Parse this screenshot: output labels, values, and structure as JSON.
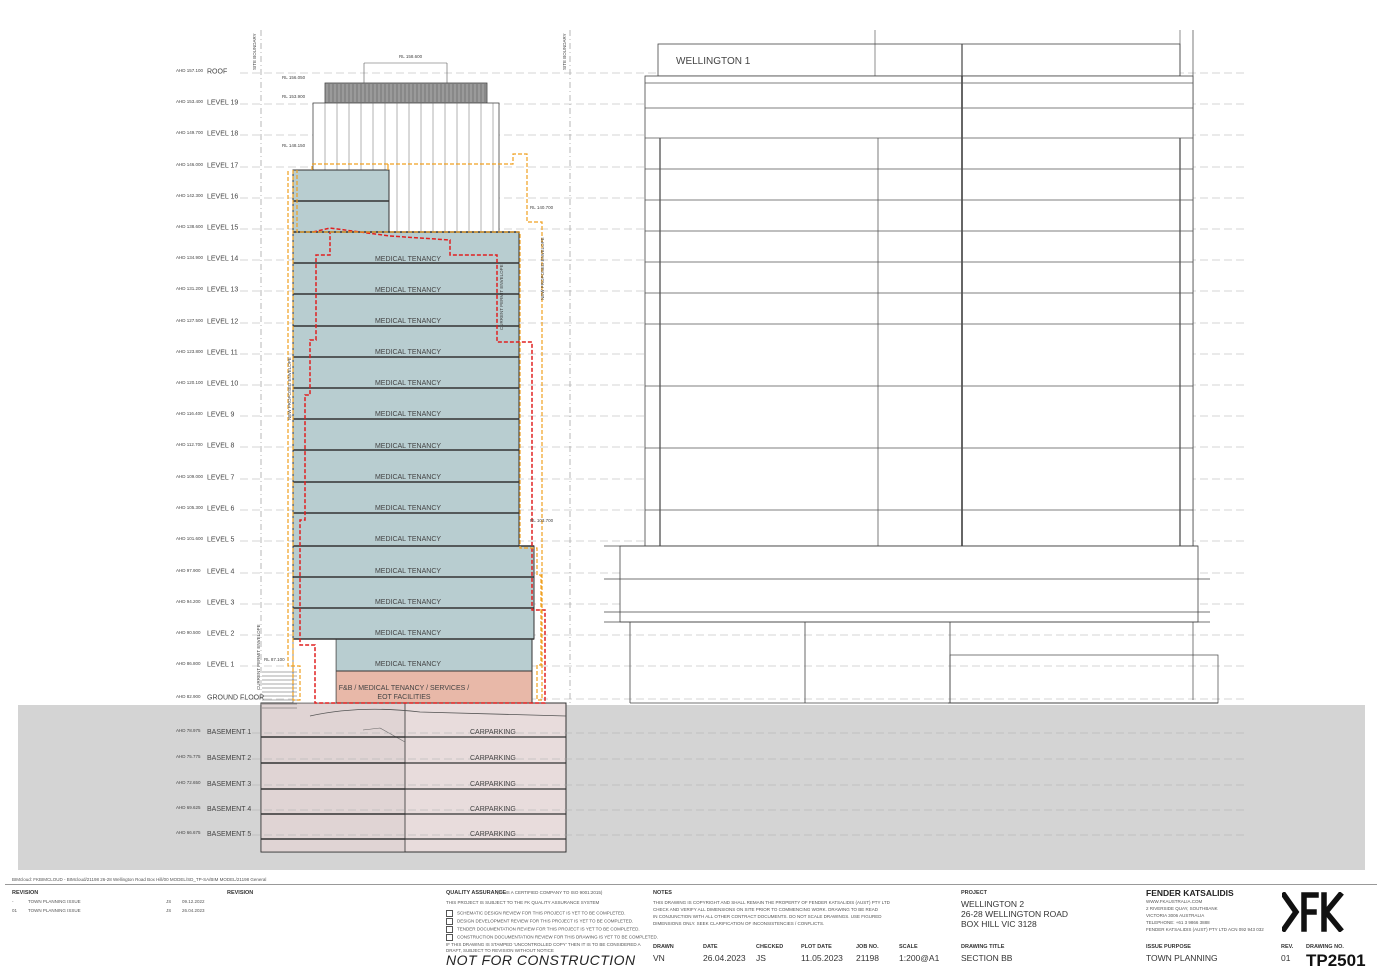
{
  "building": {
    "levels": [
      {
        "name": "ROOF",
        "ahd": "AHD 157.100"
      },
      {
        "name": "LEVEL 19",
        "ahd": "AHD 153.400"
      },
      {
        "name": "LEVEL 18",
        "ahd": "AHD 149.700"
      },
      {
        "name": "LEVEL 17",
        "ahd": "AHD 146.000"
      },
      {
        "name": "LEVEL 16",
        "ahd": "AHD 142.300"
      },
      {
        "name": "LEVEL 15",
        "ahd": "AHD 138.600"
      },
      {
        "name": "LEVEL 14",
        "ahd": "AHD 134.900"
      },
      {
        "name": "LEVEL 13",
        "ahd": "AHD 131.200"
      },
      {
        "name": "LEVEL 12",
        "ahd": "AHD 127.500"
      },
      {
        "name": "LEVEL 11",
        "ahd": "AHD 123.800"
      },
      {
        "name": "LEVEL 10",
        "ahd": "AHD 120.100"
      },
      {
        "name": "LEVEL 9",
        "ahd": "AHD 116.400"
      },
      {
        "name": "LEVEL 8",
        "ahd": "AHD 112.700"
      },
      {
        "name": "LEVEL 7",
        "ahd": "AHD 109.000"
      },
      {
        "name": "LEVEL 6",
        "ahd": "AHD 105.300"
      },
      {
        "name": "LEVEL 5",
        "ahd": "AHD 101.600"
      },
      {
        "name": "LEVEL 4",
        "ahd": "AHD 97.900"
      },
      {
        "name": "LEVEL 3",
        "ahd": "AHD 94.200"
      },
      {
        "name": "LEVEL 2",
        "ahd": "AHD 90.500"
      },
      {
        "name": "LEVEL 1",
        "ahd": "AHD 86.800"
      },
      {
        "name": "GROUND FLOOR",
        "ahd": "AHD 82.900"
      }
    ],
    "basements": [
      {
        "name": "BASEMENT 1",
        "ahd": "AHD 78.975",
        "use": "CARPARKING"
      },
      {
        "name": "BASEMENT 2",
        "ahd": "AHD 75.775",
        "use": "CARPARKING"
      },
      {
        "name": "BASEMENT 3",
        "ahd": "AHD 72.650",
        "use": "CARPARKING"
      },
      {
        "name": "BASEMENT 4",
        "ahd": "AHD 69.625",
        "use": "CARPARKING"
      },
      {
        "name": "BASEMENT 5",
        "ahd": "AHD 66.675",
        "use": "CARPARKING"
      }
    ],
    "tenancy_label": "MEDICAL TENANCY",
    "ground_label_1": "F&B / MEDICAL TENANCY / SERVICES /",
    "ground_label_2": "EOT FACILITIES",
    "site_boundary": "SITE BOUNDARY",
    "rl_top": "RL 158.600",
    "rl_roof": "RL 156.050",
    "rl_l19": "RL 153.900",
    "rl_l17": "RL 148.150",
    "rl_east": "RL 140.700",
    "rl_l5": "RL 103.700",
    "rl_l1": "RL 87.100",
    "envelope_label_1": "CURRENT PERMIT ENVELOPE",
    "envelope_label_2": "CURRENT PERMIT ENVELOPE",
    "envelope_label_3": "NEW PROPOSED ENVELOPE",
    "envelope_label_4": "NEW PROPOSED ENVELOPE"
  },
  "neighbour": {
    "name": "WELLINGTON 1"
  },
  "colors": {
    "tenancy": "#b8cdd0",
    "ground_tenancy": "#e8b8a8",
    "basement": "#e8dcdc",
    "ground": "#d4d4d4",
    "permit_envelope": "#e02020",
    "proposed_envelope": "#f0a020"
  },
  "titleblock": {
    "file_path": "BIMcloud: FKBIMCLOUD - BIMcloud/21198 26-28 Wellington Road Box Hill/00 MODEL/SD_TP-SA/BIM MODEL/21198 General",
    "revision_header": "REVISION",
    "revision_header_2": "REVISION",
    "revisions": [
      {
        "rev": "-",
        "desc": "TOWN PLANNING ISSUE",
        "by": "JS",
        "date": "09.12.2022"
      },
      {
        "rev": "01",
        "desc": "TOWN PLANNING ISSUE",
        "by": "JS",
        "date": "26.04.2023"
      }
    ],
    "qa_header": "QUALITY ASSURANCE",
    "qa_cert": "(FK IS A CERTIFIED COMPANY TO ISO 9001:2015)",
    "qa_intro": "THIS PROJECT IS SUBJECT TO THE FK QUALITY ASSURANCE SYSTEM",
    "qa_items": [
      "SCHEMATIC DESIGN REVIEW FOR THIS PROJECT IS YET TO BE COMPLETED.",
      "DESIGN DEVELOPMENT REVIEW FOR THIS PROJECT IS YET TO BE COMPLETED.",
      "TENDER DOCUMENTATION REVIEW FOR THIS PROJECT IS YET TO BE COMPLETED.",
      "CONSTRUCTION DOCUMENTATION REVIEW FOR THIS DRAWING IS YET TO BE COMPLETED."
    ],
    "qa_note_1": "IF THIS DRAWING IS STAMPED 'UNCONTROLLED COPY' THEN IT IS TO BE CONSIDERED A",
    "qa_note_2": "DRAFT, SUBJECT TO REVISION WITHOUT NOTICE",
    "not_for_construction": "NOT FOR CONSTRUCTION",
    "notes_header": "NOTES",
    "notes": [
      "THIS DRAWING IS COPYRIGHT AND SHALL REMAIN THE PROPERTY OF FENDER KATSALIDIS (AUST) PTY LTD",
      "CHECK AND VERIFY ALL DIMENSIONS ON SITE PRIOR TO COMMENCING WORK. DRAWING TO BE READ",
      "IN CONJUNCTION WITH ALL OTHER CONTRACT DOCUMENTS. DO NOT SCALE DRAWINGS. USE FIGURED",
      "DIMENSIONS ONLY. SEEK CLARIFICATION OF INCONSISTENCIES / CONFLICTS."
    ],
    "drawn_label": "DRAWN",
    "drawn": "VN",
    "date_label": "DATE",
    "date": "26.04.2023",
    "checked_label": "CHECKED",
    "checked": "JS",
    "plot_date_label": "PLOT DATE",
    "plot_date": "11.05.2023",
    "job_no_label": "JOB NO.",
    "job_no": "21198",
    "scale_label": "SCALE",
    "scale": "1:200@A1",
    "project_label": "PROJECT",
    "project_1": "WELLINGTON 2",
    "project_2": "26-28 WELLINGTON ROAD",
    "project_3": "BOX HILL VIC 3128",
    "drawing_title_label": "DRAWING TITLE",
    "drawing_title": "SECTION BB",
    "company": "FENDER KATSALIDIS",
    "company_lines": [
      "WWW.FKAUSTRALIA.COM",
      "2 RIVERSIDE QUAY, SOUTHBANK",
      "VICTORIA 3006 AUSTRALIA",
      "TELEPHONE: +61 3 9866 3888",
      "FENDER KATSALIDIS (AUST) PTY LTD  ACN 092 943 032"
    ],
    "issue_purpose_label": "ISSUE PURPOSE",
    "issue_purpose": "TOWN PLANNING",
    "rev_label": "REV.",
    "rev": "01",
    "drawing_no_label": "DRAWING NO.",
    "drawing_no": "TP2501",
    "logo": "fk-logo"
  }
}
